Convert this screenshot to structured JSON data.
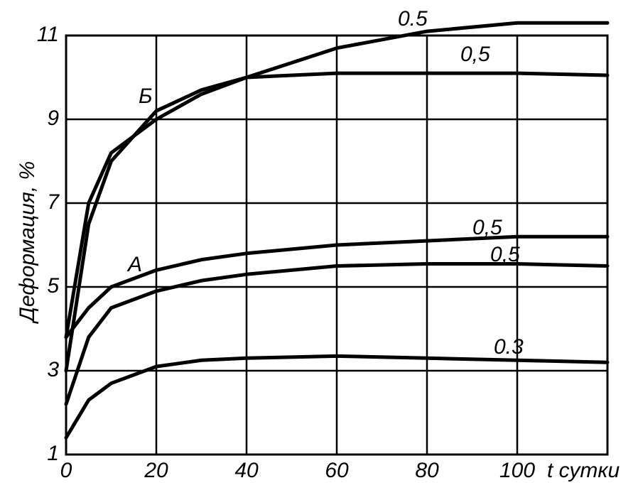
{
  "chart_data": {
    "type": "line",
    "y_label": "Деформация, %",
    "x_label": "t сутки",
    "x": [
      0,
      5,
      10,
      20,
      30,
      40,
      60,
      80,
      100,
      120
    ],
    "series": [
      {
        "name": "0.5",
        "color": "#000000",
        "values": [
          3.8,
          7.0,
          8.2,
          9.0,
          9.6,
          10.0,
          10.7,
          11.1,
          11.3,
          11.3
        ]
      },
      {
        "name": "0,5",
        "color": "#000000",
        "values": [
          3.0,
          6.5,
          8.0,
          9.2,
          9.7,
          10.0,
          10.1,
          10.1,
          10.1,
          10.05
        ]
      },
      {
        "name": "0,5",
        "color": "#000000",
        "values": [
          3.8,
          4.5,
          5.0,
          5.4,
          5.65,
          5.8,
          6.0,
          6.1,
          6.2,
          6.2
        ]
      },
      {
        "name": "0,5",
        "color": "#000000",
        "values": [
          2.2,
          3.8,
          4.5,
          4.9,
          5.15,
          5.3,
          5.5,
          5.55,
          5.55,
          5.5
        ]
      },
      {
        "name": "0.3",
        "color": "#000000",
        "values": [
          1.4,
          2.3,
          2.7,
          3.1,
          3.25,
          3.3,
          3.35,
          3.3,
          3.25,
          3.2
        ]
      }
    ],
    "annotations": [
      "Б",
      "А"
    ],
    "xlim": [
      0,
      120
    ],
    "xticks": [
      0,
      20,
      40,
      60,
      80,
      100
    ],
    "ylim": [
      1,
      11
    ],
    "yticks": [
      1,
      3,
      5,
      7,
      9,
      11
    ],
    "grid": true
  }
}
